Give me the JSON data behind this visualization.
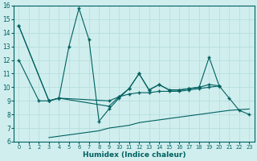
{
  "xlabel": "Humidex (Indice chaleur)",
  "color": "#006060",
  "bg_color": "#d0eeee",
  "grid_color": "#b8dede",
  "ylim": [
    6,
    16
  ],
  "xlim": [
    -0.5,
    23.5
  ],
  "yticks": [
    6,
    7,
    8,
    9,
    10,
    11,
    12,
    13,
    14,
    15,
    16
  ],
  "xticks": [
    0,
    1,
    2,
    3,
    4,
    5,
    6,
    7,
    8,
    9,
    10,
    11,
    12,
    13,
    14,
    15,
    16,
    17,
    18,
    19,
    20,
    21,
    22,
    23
  ],
  "line_volatile_x": [
    0,
    3,
    4,
    5,
    6,
    7,
    8,
    9,
    10,
    11,
    12,
    13,
    14,
    15,
    16,
    17,
    18,
    19,
    20,
    21,
    22,
    23
  ],
  "line_volatile_y": [
    14.5,
    9.0,
    9.2,
    13.0,
    15.8,
    13.5,
    7.5,
    8.4,
    9.2,
    9.9,
    11.0,
    9.8,
    10.2,
    9.8,
    9.8,
    9.9,
    10.0,
    12.2,
    10.1,
    9.2,
    8.3,
    8.0
  ],
  "line_upper_x": [
    0,
    3,
    4,
    9,
    10,
    11,
    12,
    13,
    14,
    15,
    16,
    17,
    18,
    19,
    20
  ],
  "line_upper_y": [
    14.5,
    9.0,
    9.2,
    8.6,
    9.3,
    9.9,
    11.0,
    9.8,
    10.2,
    9.8,
    9.8,
    9.9,
    10.0,
    10.2,
    10.1
  ],
  "line_lower_x": [
    0,
    2,
    3,
    4,
    9,
    10,
    11,
    12,
    13,
    14,
    15,
    16,
    17,
    18,
    19,
    20
  ],
  "line_lower_y": [
    12.0,
    9.0,
    9.0,
    9.2,
    9.0,
    9.3,
    9.5,
    9.6,
    9.6,
    9.7,
    9.7,
    9.7,
    9.8,
    9.9,
    10.0,
    10.1
  ],
  "line_bottom_x": [
    3,
    4,
    5,
    6,
    7,
    8,
    9,
    10,
    11,
    12,
    13,
    14,
    15,
    16,
    17,
    18,
    19,
    20,
    21,
    22,
    23
  ],
  "line_bottom_y": [
    6.3,
    6.4,
    6.5,
    6.6,
    6.7,
    6.8,
    7.0,
    7.1,
    7.2,
    7.4,
    7.5,
    7.6,
    7.7,
    7.8,
    7.9,
    8.0,
    8.1,
    8.2,
    8.3,
    8.35,
    8.4
  ]
}
